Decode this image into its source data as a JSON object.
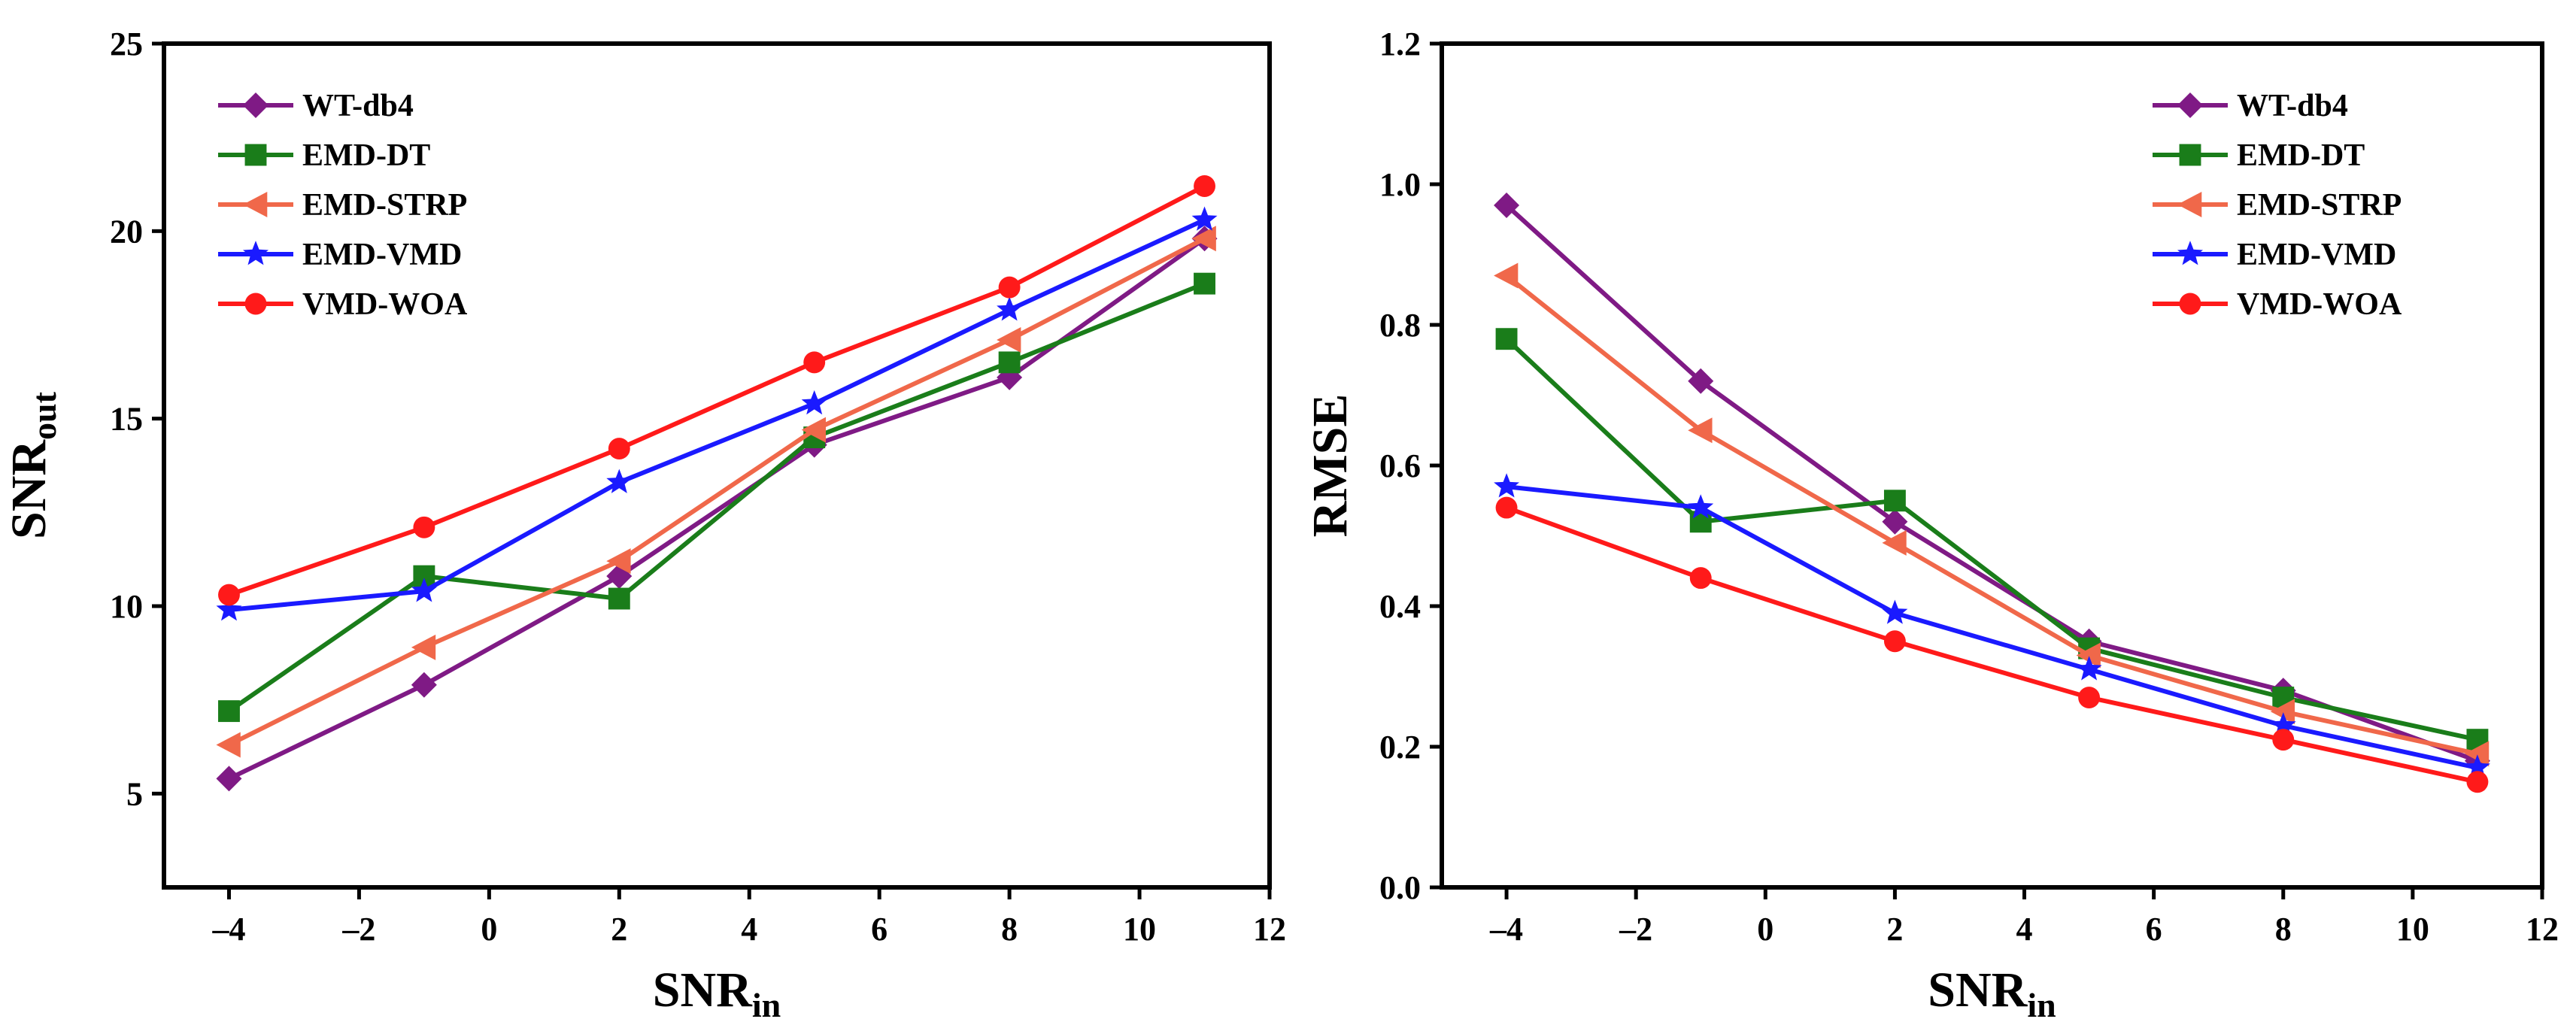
{
  "chart_data": [
    {
      "type": "line",
      "title": "",
      "xlabel": {
        "main": "SNR",
        "sub": "in"
      },
      "ylabel": {
        "main": "SNR",
        "sub": "out"
      },
      "xlim": [
        -5,
        12
      ],
      "ylim": [
        2.5,
        25
      ],
      "xticks": [
        -4,
        -2,
        0,
        2,
        4,
        6,
        8,
        10,
        12
      ],
      "yticks": [
        5,
        10,
        15,
        20,
        25
      ],
      "ytick_labels": [
        "5",
        "10",
        "15",
        "20",
        "25"
      ],
      "legend_position": "top-left",
      "x": [
        -4,
        -1,
        2,
        5,
        8,
        11
      ],
      "series": [
        {
          "name": "WT-db4",
          "color": "#7f1a85",
          "marker": "diamond",
          "values": [
            5.4,
            7.9,
            10.8,
            14.3,
            16.1,
            19.8
          ]
        },
        {
          "name": "EMD-DT",
          "color": "#1a7d1a",
          "marker": "square",
          "values": [
            7.2,
            10.8,
            10.2,
            14.5,
            16.5,
            18.6
          ]
        },
        {
          "name": "EMD-STRP",
          "color": "#f0684a",
          "marker": "triangle-left",
          "values": [
            6.3,
            8.9,
            11.2,
            14.7,
            17.1,
            19.8
          ]
        },
        {
          "name": "EMD-VMD",
          "color": "#1a1aff",
          "marker": "star",
          "values": [
            9.9,
            10.4,
            13.3,
            15.4,
            17.9,
            20.3
          ]
        },
        {
          "name": "VMD-WOA",
          "color": "#ff1a1a",
          "marker": "circle",
          "values": [
            10.3,
            12.1,
            14.2,
            16.5,
            18.5,
            21.2
          ]
        }
      ]
    },
    {
      "type": "line",
      "title": "",
      "xlabel": {
        "main": "SNR",
        "sub": "in"
      },
      "ylabel": {
        "main": "RMSE",
        "sub": ""
      },
      "xlim": [
        -5,
        12
      ],
      "ylim": [
        0,
        1.2
      ],
      "xticks": [
        -4,
        -2,
        0,
        2,
        4,
        6,
        8,
        10,
        12
      ],
      "yticks": [
        0,
        0.2,
        0.4,
        0.6,
        0.8,
        1.0,
        1.2
      ],
      "ytick_labels": [
        "0.0",
        "0.2",
        "0.4",
        "0.6",
        "0.8",
        "1.0",
        "1.2"
      ],
      "legend_position": "top-right",
      "x": [
        -4,
        -1,
        2,
        5,
        8,
        11
      ],
      "series": [
        {
          "name": "WT-db4",
          "color": "#7f1a85",
          "marker": "diamond",
          "values": [
            0.97,
            0.72,
            0.52,
            0.35,
            0.28,
            0.18
          ]
        },
        {
          "name": "EMD-DT",
          "color": "#1a7d1a",
          "marker": "square",
          "values": [
            0.78,
            0.52,
            0.55,
            0.34,
            0.27,
            0.21
          ]
        },
        {
          "name": "EMD-STRP",
          "color": "#f0684a",
          "marker": "triangle-left",
          "values": [
            0.87,
            0.65,
            0.49,
            0.33,
            0.25,
            0.19
          ]
        },
        {
          "name": "EMD-VMD",
          "color": "#1a1aff",
          "marker": "star",
          "values": [
            0.57,
            0.54,
            0.39,
            0.31,
            0.23,
            0.17
          ]
        },
        {
          "name": "VMD-WOA",
          "color": "#ff1a1a",
          "marker": "circle",
          "values": [
            0.54,
            0.44,
            0.35,
            0.27,
            0.21,
            0.15
          ]
        }
      ]
    }
  ]
}
